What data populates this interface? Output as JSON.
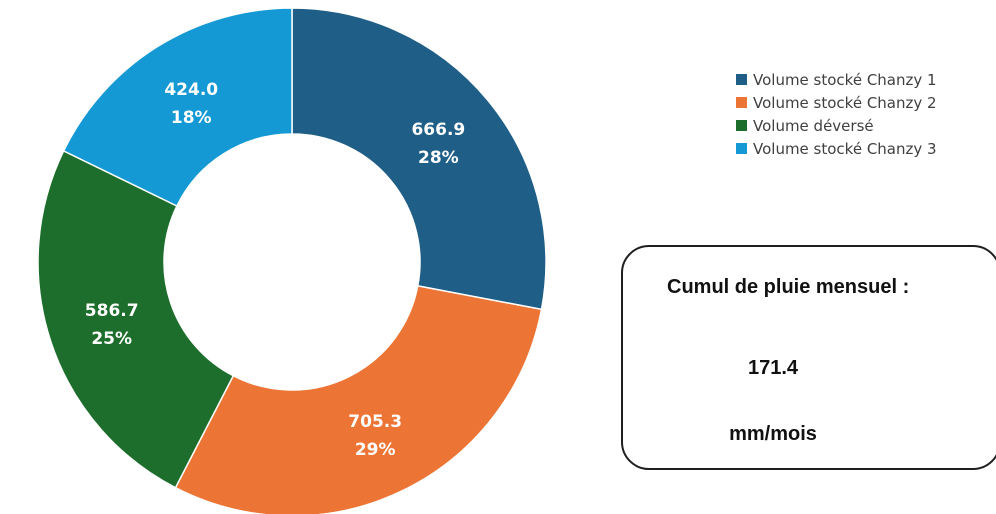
{
  "chart_data": {
    "type": "pie",
    "donut": true,
    "start_angle_deg": 0,
    "slices": [
      {
        "name": "Volume stocké Chanzy 1",
        "value": 666.9,
        "label_value": "666.9",
        "label_percent": "28%",
        "color": "#1f5e86"
      },
      {
        "name": "Volume stocké Chanzy 2",
        "value": 705.3,
        "label_value": "705.3",
        "label_percent": "29%",
        "color": "#ec7434"
      },
      {
        "name": "Volume déversé",
        "value": 586.7,
        "label_value": "586.7",
        "label_percent": "25%",
        "color": "#1d6e2c"
      },
      {
        "name": "Volume stocké Chanzy 3",
        "value": 424.0,
        "label_value": "424.0",
        "label_percent": "18%",
        "color": "#1599d4"
      }
    ],
    "legend_position": "top-right"
  },
  "rain_box": {
    "title": "Cumul de pluie mensuel :",
    "value": "171.4",
    "unit": "mm/mois"
  }
}
